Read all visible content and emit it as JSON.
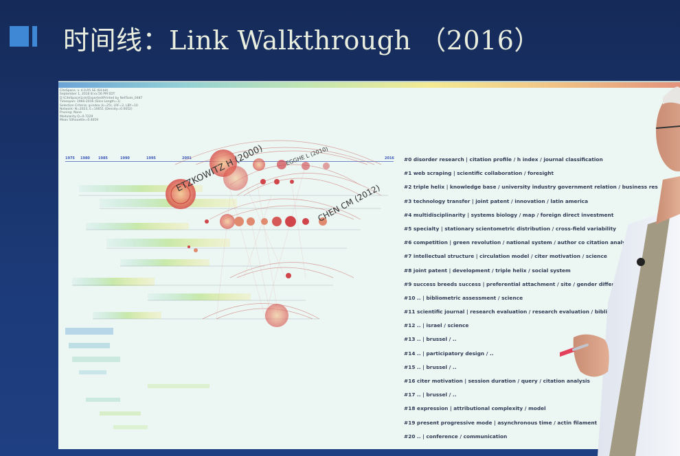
{
  "slide": {
    "title": "时间线：Link Walkthrough （2016）"
  },
  "screen_meta": [
    "CiteSpace, v. 4.0.R5 SE (64-bit)",
    "September 1, 2016 8:xx:56 PM EDT",
    "D:\\CiteSpace\\Link\\Exported\\Printed by NetTools_0487",
    "Timespan: 1966-2016 (Slice Length=1)",
    "Selection Criteria: g-index (k=25), LRF=2, LBY=10",
    "Network: N=2023, E=10651 (Density=0.0052)",
    "Pruning: None",
    "Modularity Q=0.7229",
    "Mean Silhouette=0.4059"
  ],
  "timeline": {
    "years": [
      "1975",
      "1980",
      "1985",
      "1990",
      "1995",
      "2001",
      "2016"
    ]
  },
  "node_labels": {
    "etzkowitz": "ETZKOWITZ H (2000)",
    "egghe": "EGGHE L (2010)",
    "chen": "CHEN CM (2012)"
  },
  "clusters": [
    "#0 disorder research | citation profile / h index / journal classification",
    "#1 web scraping | scientific collaboration / foresight",
    "#2 triple helix | knowledge base / university industry government relation / business res",
    "#3 technology transfer | joint patent / innovation / latin america",
    "#4 multidisciplinarity | systems biology / map / foreign direct investment",
    "#5 specialty | stationary scientometric distribution / cross-field variability",
    "#6 competition | green revolution / national system / author co citation analysis",
    "#7 intellectual structure | circulation model / citer motivation / science",
    "#8 joint patent | development / triple helix / social system",
    "#9 success breeds success | preferential attachment / site / gender difference",
    "#10 .. | bibliometric assessment / science",
    "#11 scientific journal | research evaluation / research evaluation / bibliometric",
    "#12 .. | israel / science",
    "#13 .. | brussel / ..",
    "#14 .. | participatory design / ..",
    "#15 .. | brussel / ..",
    "#16 citer motivation | session duration / query / citation analysis",
    "#17 .. | brussel / ..",
    "#18 expression | attributional complexity / model",
    "#19 present progressive mode | asynchronous time / actin filament",
    "#20 .. | conference / communication"
  ],
  "colors": {
    "background": "#1c3a78",
    "title_text": "#e9eedf",
    "title_marker": "#3f88d6",
    "screen": "#ecf6f3",
    "node_red": "#d0454a",
    "year_text": "#3a57b8"
  }
}
